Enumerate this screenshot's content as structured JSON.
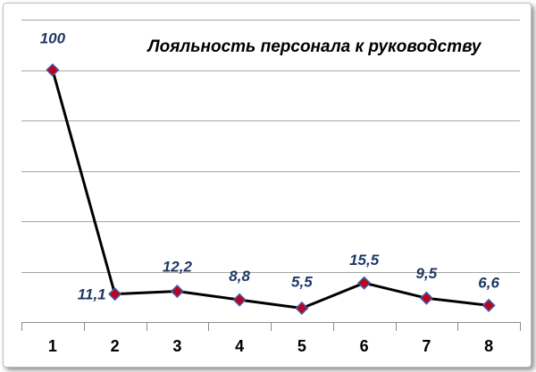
{
  "chart_data": {
    "type": "line",
    "title": "Лояльность персонала к руководству",
    "x": [
      1,
      2,
      3,
      4,
      5,
      6,
      7,
      8
    ],
    "categories": [
      "1",
      "2",
      "3",
      "4",
      "5",
      "6",
      "7",
      "8"
    ],
    "values": [
      100,
      11.1,
      12.2,
      8.8,
      5.5,
      15.5,
      9.5,
      6.6
    ],
    "data_labels": [
      "100",
      "11,1",
      "12,2",
      "8,8",
      "5,5",
      "15,5",
      "9,5",
      "6,6"
    ],
    "ylim": [
      0,
      120
    ],
    "grid": true,
    "legend": "none",
    "colors": {
      "line": "#000000",
      "marker": "#c0001f",
      "marker_edge": "#3a5fa8",
      "label": "#1f3864",
      "grid": "#a6a6a6"
    }
  }
}
